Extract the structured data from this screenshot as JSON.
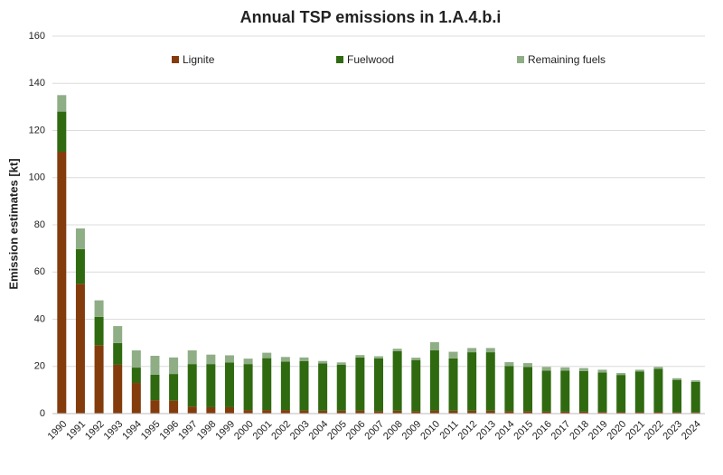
{
  "chart_data": {
    "type": "stacked_bar",
    "title": "Annual TSP emissions in 1.A.4.b.i",
    "y_label": "Emission estimates [kt]",
    "categories": [
      "1990",
      "1991",
      "1992",
      "1993",
      "1994",
      "1995",
      "1996",
      "1997",
      "1998",
      "1999",
      "2000",
      "2001",
      "2002",
      "2003",
      "2004",
      "2005",
      "2006",
      "2007",
      "2008",
      "2009",
      "2010",
      "2011",
      "2012",
      "2013",
      "2014",
      "2015",
      "2016",
      "2017",
      "2018",
      "2019",
      "2020",
      "2021",
      "2022",
      "2023",
      "2024"
    ],
    "series": [
      {
        "name": "Lignite",
        "color": "#843c0c",
        "values": [
          111,
          55,
          29,
          20.7,
          13,
          5.7,
          5.5,
          3,
          2.7,
          2.7,
          1.5,
          1.5,
          1.5,
          1.3,
          1.2,
          1.2,
          1.3,
          1,
          1.2,
          1,
          1.3,
          1.2,
          1.2,
          1.2,
          1,
          1,
          0.8,
          0.8,
          0.8,
          0.7,
          0.6,
          0.6,
          0.6,
          0.5,
          0.5
        ]
      },
      {
        "name": "Fuelwood",
        "color": "#2f6a10",
        "values": [
          17,
          14.7,
          12,
          9.2,
          6.5,
          10.8,
          11.3,
          18,
          18.3,
          19,
          19.5,
          22,
          20.5,
          21,
          20.1,
          19.5,
          22.5,
          22.4,
          25.3,
          21.7,
          25.5,
          22.2,
          24.8,
          24.8,
          19.2,
          18.8,
          17.4,
          17.4,
          17.2,
          16.7,
          15.8,
          17.2,
          18.4,
          13.8,
          12.9
        ]
      },
      {
        "name": "Remaining fuels",
        "color": "#8fae86",
        "values": [
          7,
          8.8,
          7,
          7.2,
          7.3,
          8,
          7,
          5.8,
          4,
          3,
          2.3,
          2.3,
          2,
          1.5,
          1,
          1,
          1,
          0.9,
          1,
          1,
          3.5,
          2.8,
          1.8,
          1.8,
          1.6,
          1.6,
          1.6,
          1.4,
          1.3,
          1.2,
          0.8,
          0.8,
          0.8,
          0.7,
          0.7
        ]
      }
    ],
    "ylim": [
      0,
      160
    ],
    "yticks": [
      0,
      20,
      40,
      60,
      80,
      100,
      120,
      140,
      160
    ],
    "grid": true,
    "legend": "top"
  }
}
